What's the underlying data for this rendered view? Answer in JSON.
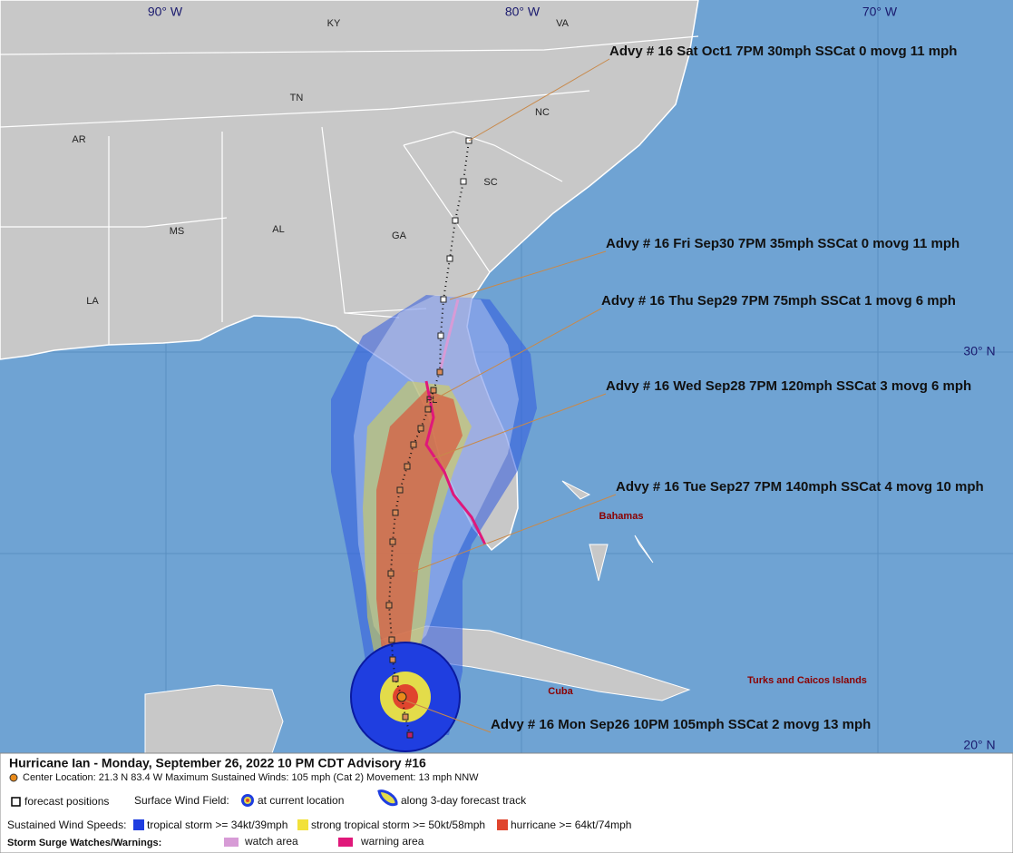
{
  "map": {
    "longitude_labels": [
      "90° W",
      "80° W",
      "70° W"
    ],
    "latitude_labels": [
      "30° N",
      "20° N"
    ],
    "state_labels": [
      "KY",
      "VA",
      "TN",
      "NC",
      "AR",
      "SC",
      "MS",
      "AL",
      "GA",
      "LA",
      "FL"
    ],
    "place_labels": [
      "Bahamas",
      "Cuba",
      "Turks and Caicos Islands"
    ],
    "advisories": [
      "Advy # 16 Sat Oct1 7PM  30mph SSCat 0 movg 11 mph",
      "Advy # 16 Fri Sep30 7PM  35mph SSCat 0 movg 11 mph",
      "Advy # 16 Thu Sep29 7PM  75mph SSCat 1 movg 6 mph",
      "Advy # 16 Wed Sep28 7PM  120mph SSCat 3 movg 6 mph",
      "Advy # 16 Tue Sep27 7PM  140mph SSCat 4 movg 10 mph",
      "Advy # 16 Mon Sep26 10PM  105mph SSCat 2 movg 13 mph"
    ]
  },
  "legend": {
    "title": "Hurricane Ian  -  Monday, September 26, 2022  10 PM CDT   Advisory #16",
    "center": "Center Location: 21.3 N  83.4 W   Maximum Sustained Winds: 105 mph (Cat 2) Movement: 13 mph NNW",
    "forecast_positions": "forecast positions",
    "surface_wind_field": "Surface Wind Field:",
    "at_current_location": "at current location",
    "along_track": "along 3-day forecast track",
    "sustained_wind_speeds": "Sustained Wind Speeds:",
    "tropical_storm": "tropical storm >= 34kt/39mph",
    "strong_tropical_storm": "strong tropical storm >= 50kt/58mph",
    "hurricane": "hurricane >= 64kt/74mph",
    "storm_surge": "Storm Surge Watches/Warnings:",
    "watch_area": "watch area",
    "warning_area": "warning area"
  }
}
